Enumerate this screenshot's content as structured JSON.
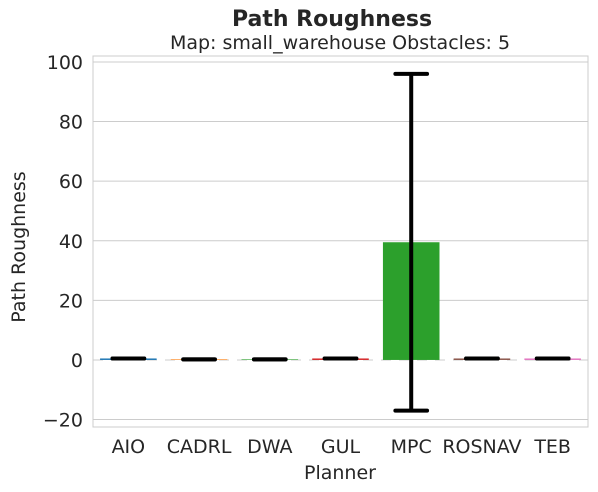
{
  "chart_data": {
    "type": "bar",
    "title": "Path Roughness",
    "subtitle": "Map: small_warehouse Obstacles: 5",
    "xlabel": "Planner",
    "ylabel": "Path Roughness",
    "categories": [
      "AIO",
      "CADRL",
      "DWA",
      "GUL",
      "MPC",
      "ROSNAV",
      "TEB"
    ],
    "values": [
      0.5,
      0.2,
      0.2,
      0.5,
      39.5,
      0.5,
      0.5
    ],
    "error_low": [
      0.5,
      0.2,
      0.2,
      0.5,
      -17,
      0.5,
      0.5
    ],
    "error_high": [
      0.5,
      0.2,
      0.2,
      0.5,
      96,
      0.5,
      0.5
    ],
    "bar_colors": [
      "#1f77b4",
      "#ff7f0e",
      "#2ca02c",
      "#d62728",
      "#2ca02c",
      "#8c564b",
      "#e377c2"
    ],
    "ylim": [
      -22.5,
      102
    ],
    "yticks": [
      -20,
      0,
      20,
      40,
      60,
      80,
      100
    ],
    "ytick_labels": [
      "−20",
      "0",
      "20",
      "40",
      "60",
      "80",
      "100"
    ],
    "grid": true,
    "zero_line": "dashed",
    "legend": "none"
  }
}
